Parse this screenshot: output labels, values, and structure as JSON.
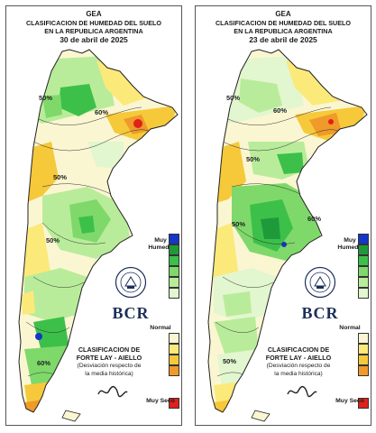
{
  "panels": [
    {
      "header": {
        "org": "GEA",
        "title_line1": "CLASIFICACION DE HUMEDAD DEL SUELO",
        "title_line2": "EN LA REPUBLICA ARGENTINA",
        "date": "30 de abril de 2025"
      },
      "contour_labels": [
        "50%",
        "60%",
        "50%",
        "50%",
        "60%"
      ]
    },
    {
      "header": {
        "org": "GEA",
        "title_line1": "CLASIFICACION DE HUMEDAD DEL SUELO",
        "title_line2": "EN LA REPUBLICA ARGENTINA",
        "date": "23 de abril de 2025"
      },
      "contour_labels": [
        "50%",
        "60%",
        "50%",
        "50%",
        "60%",
        "50%"
      ]
    }
  ],
  "legend": {
    "top_label": "Muy Humedo",
    "middle_label": "Normal",
    "bottom_label": "Muy Seco",
    "colors": [
      "#1536c8",
      "#1f9a3a",
      "#3cc04a",
      "#7fd96a",
      "#b9ec9a",
      "#e2f6cf",
      "#fbf6d2",
      "#fbe97a",
      "#f6c93a",
      "#ef9a2a",
      "#e0201b"
    ]
  },
  "classification": {
    "line1": "CLASIFICACION DE",
    "line2": "FORTE LAY - AIELLO",
    "line3": "(Desviación respecto de",
    "line4": "la media histórica)"
  },
  "logo": {
    "text": "BCR",
    "seal_text": "BOLSA DE COMERCIO DE ROSARIO"
  }
}
